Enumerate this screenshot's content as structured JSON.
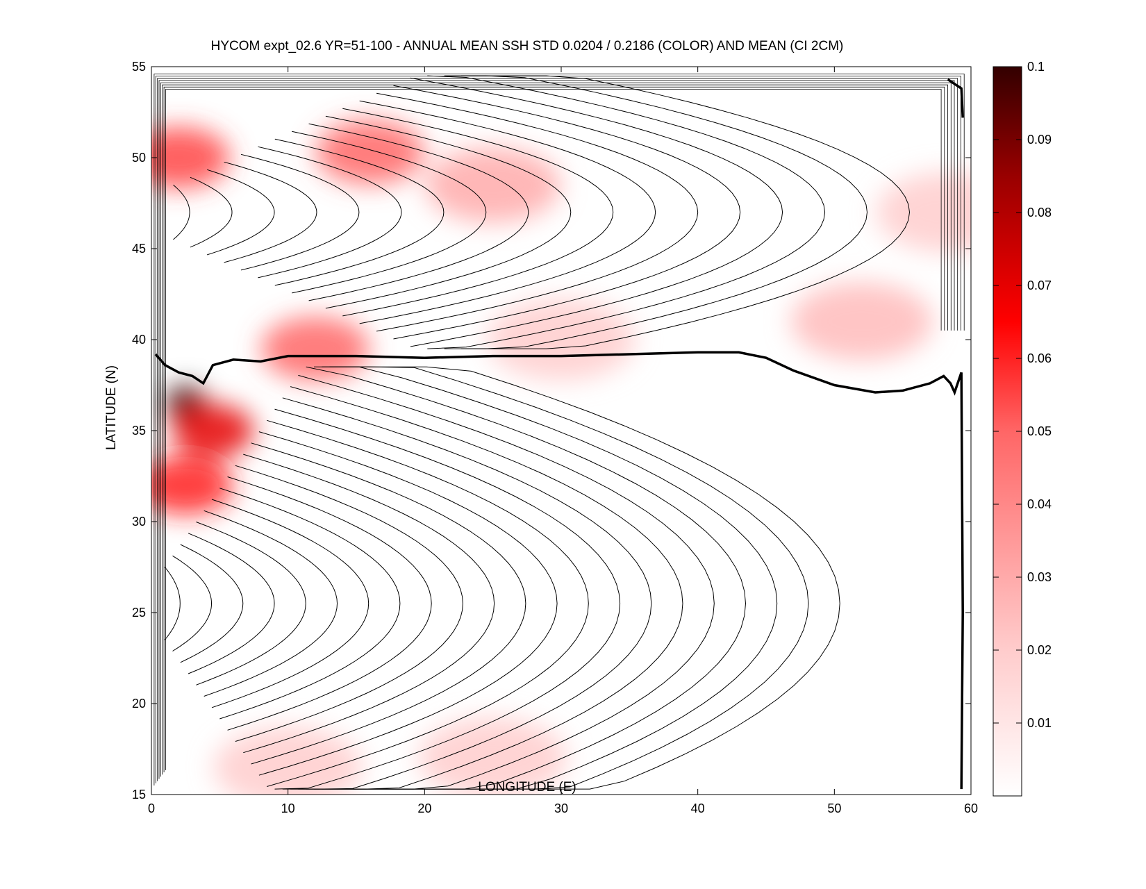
{
  "chart_data": {
    "type": "heatmap",
    "title": "HYCOM expt_02.6 YR=51-100 - ANNUAL MEAN SSH STD 0.0204 / 0.2186 (COLOR) AND MEAN (CI 2CM)",
    "xlabel": "LONGITUDE (E)",
    "ylabel": "LATITUDE (N)",
    "xlim": [
      0,
      60
    ],
    "ylim": [
      15,
      55
    ],
    "xticks": [
      0,
      10,
      20,
      30,
      40,
      50,
      60
    ],
    "yticks": [
      15,
      20,
      25,
      30,
      35,
      40,
      45,
      50,
      55
    ],
    "colorbar": {
      "min": 0,
      "max": 0.1,
      "ticks": [
        0.01,
        0.02,
        0.03,
        0.04,
        0.05,
        0.06,
        0.07,
        0.08,
        0.09,
        0.1
      ],
      "colormap": [
        "#ffffff",
        "#ffcccc",
        "#ff6666",
        "#ff0000",
        "#990000",
        "#330000"
      ]
    },
    "color_field": "SSH STD",
    "contour_field": "MEAN SSH",
    "contour_interval": "2CM",
    "hotspots": [
      {
        "lon": 2.5,
        "lat": 36.5,
        "std": 0.1
      },
      {
        "lon": 4.5,
        "lat": 35,
        "std": 0.07
      },
      {
        "lon": 2.5,
        "lat": 32,
        "std": 0.06
      },
      {
        "lon": 2,
        "lat": 50,
        "std": 0.055
      },
      {
        "lon": 16,
        "lat": 50.3,
        "std": 0.05
      },
      {
        "lon": 12,
        "lat": 39.5,
        "std": 0.05
      },
      {
        "lon": 25,
        "lat": 48.5,
        "std": 0.03
      },
      {
        "lon": 30,
        "lat": 40,
        "std": 0.02
      },
      {
        "lon": 52,
        "lat": 41,
        "std": 0.025
      },
      {
        "lon": 25,
        "lat": 17,
        "std": 0.02
      },
      {
        "lon": 10,
        "lat": 16.5,
        "std": 0.02
      },
      {
        "lon": 58.5,
        "lat": 47,
        "std": 0.02
      }
    ],
    "zero_contour": [
      [
        0.3,
        39.2
      ],
      [
        1,
        38.6
      ],
      [
        2,
        38.2
      ],
      [
        3,
        38.0
      ],
      [
        3.8,
        37.6
      ],
      [
        4.5,
        38.6
      ],
      [
        6,
        38.9
      ],
      [
        8,
        38.8
      ],
      [
        10,
        39.1
      ],
      [
        15,
        39.1
      ],
      [
        20,
        39.0
      ],
      [
        25,
        39.1
      ],
      [
        30,
        39.1
      ],
      [
        35,
        39.2
      ],
      [
        40,
        39.3
      ],
      [
        43,
        39.3
      ],
      [
        45,
        39.0
      ],
      [
        47,
        38.3
      ],
      [
        50,
        37.5
      ],
      [
        53,
        37.1
      ],
      [
        55,
        37.2
      ],
      [
        57,
        37.6
      ],
      [
        58,
        38.0
      ],
      [
        58.5,
        37.6
      ],
      [
        58.8,
        37.1
      ],
      [
        59.3,
        38.2
      ]
    ]
  }
}
